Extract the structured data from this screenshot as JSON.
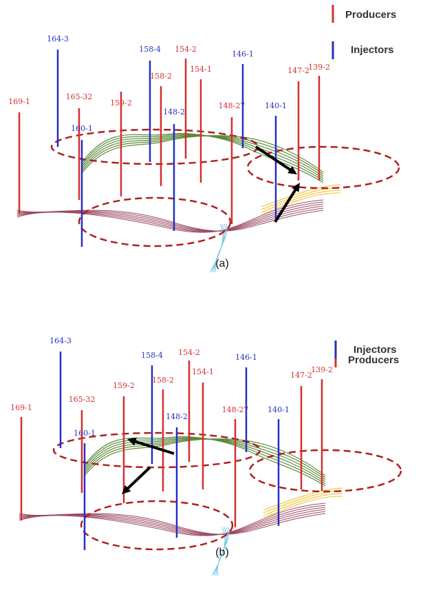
{
  "panels": [
    {
      "legend": [
        "Producers",
        "Injectors"
      ],
      "wells": [
        "169-1",
        "164-3",
        "165-32",
        "160-1",
        "159-2",
        "158-4",
        "158-2",
        "154-2",
        "154-1",
        "148-2",
        "148-27",
        "146-1",
        "140-1",
        "147-2",
        "139-2"
      ],
      "caption": "(a)"
    },
    {
      "legend": [
        "Producers",
        "Injectors"
      ],
      "wells": [
        "169-1",
        "164-3",
        "165-32",
        "160-1",
        "159-2",
        "158-4",
        "158-2",
        "154-2",
        "154-1",
        "148-2",
        "148-27",
        "146-1",
        "140-1",
        "147-2",
        "139-2"
      ],
      "caption": "(b)"
    }
  ]
}
